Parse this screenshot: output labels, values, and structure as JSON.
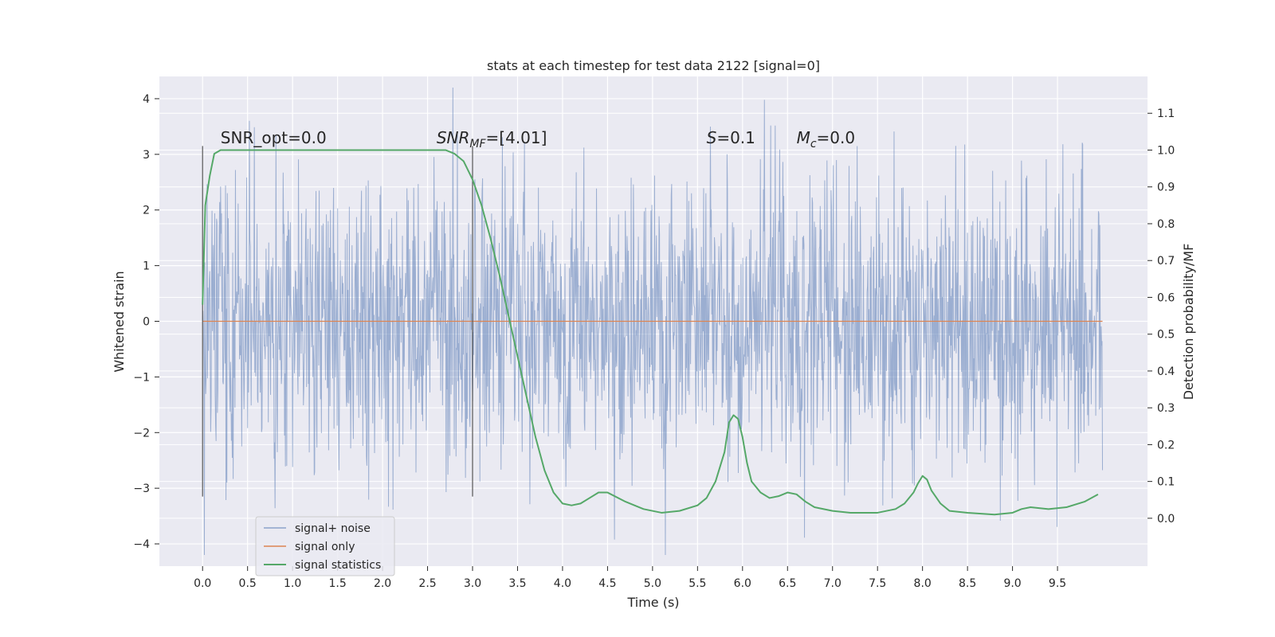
{
  "chart_data": {
    "type": "line",
    "title": "stats at each timestep for test data 2122 [signal=0]",
    "xlabel": "Time (s)",
    "ylabel": "Whitened strain",
    "y2label": "Detection probability/MF",
    "xlim": [
      -0.48,
      10.5
    ],
    "ylim": [
      -4.4,
      4.4
    ],
    "y2lim": [
      -0.13,
      1.2
    ],
    "x_ticks": [
      0.0,
      0.5,
      1.0,
      1.5,
      2.0,
      2.5,
      3.0,
      3.5,
      4.0,
      4.5,
      5.0,
      5.5,
      6.0,
      6.5,
      7.0,
      7.5,
      8.0,
      8.5,
      9.0,
      9.5
    ],
    "x_tick_labels": [
      "0.0",
      "0.5",
      "1.0",
      "1.5",
      "2.0",
      "2.5",
      "3.0",
      "3.5",
      "4.0",
      "4.5",
      "5.0",
      "5.5",
      "6.0",
      "6.5",
      "7.0",
      "7.5",
      "8.0",
      "8.5",
      "9.0",
      "9.5"
    ],
    "y_ticks": [
      4,
      3,
      2,
      1,
      0,
      -1,
      -2,
      -3,
      -4
    ],
    "y_tick_labels": [
      "4",
      "3",
      "2",
      "1",
      "0",
      "−1",
      "−2",
      "−3",
      "−4"
    ],
    "y2_ticks": [
      1.1,
      1.0,
      0.9,
      0.8,
      0.7,
      0.6,
      0.5,
      0.4,
      0.3,
      0.2,
      0.1,
      0.0
    ],
    "y2_tick_labels": [
      "1.1",
      "1.0",
      "0.9",
      "0.8",
      "0.7",
      "0.6",
      "0.5",
      "0.4",
      "0.3",
      "0.2",
      "0.1",
      "0.0"
    ],
    "grid": true,
    "legend_position": "lower-left",
    "series": [
      {
        "name": "signal+ noise",
        "color": "#4c72b0",
        "axis": "left",
        "kind": "noise",
        "x_range": [
          0.0,
          10.0
        ],
        "amplitude_std": 1.25
      },
      {
        "name": "signal only",
        "color": "#dd8452",
        "axis": "left",
        "x": [
          0.0,
          10.0
        ],
        "y": [
          0.0,
          0.0
        ]
      },
      {
        "name": "signal statistics",
        "color": "#55a868",
        "axis": "right",
        "x": [
          0.0,
          0.03,
          0.08,
          0.13,
          0.2,
          0.3,
          0.5,
          1.0,
          1.5,
          2.0,
          2.5,
          2.7,
          2.8,
          2.9,
          3.0,
          3.1,
          3.2,
          3.3,
          3.4,
          3.5,
          3.6,
          3.7,
          3.8,
          3.9,
          4.0,
          4.1,
          4.2,
          4.3,
          4.4,
          4.5,
          4.7,
          4.9,
          5.1,
          5.3,
          5.5,
          5.6,
          5.7,
          5.8,
          5.85,
          5.9,
          5.95,
          6.0,
          6.05,
          6.1,
          6.2,
          6.3,
          6.4,
          6.5,
          6.6,
          6.7,
          6.8,
          7.0,
          7.2,
          7.5,
          7.7,
          7.8,
          7.9,
          7.95,
          8.0,
          8.05,
          8.1,
          8.2,
          8.3,
          8.5,
          8.8,
          9.0,
          9.1,
          9.2,
          9.4,
          9.6,
          9.8,
          9.95
        ],
        "y": [
          0.58,
          0.85,
          0.93,
          0.99,
          1.0,
          1.0,
          1.0,
          1.0,
          1.0,
          1.0,
          1.0,
          1.0,
          0.99,
          0.97,
          0.92,
          0.85,
          0.76,
          0.66,
          0.55,
          0.44,
          0.33,
          0.22,
          0.13,
          0.07,
          0.04,
          0.035,
          0.04,
          0.055,
          0.07,
          0.07,
          0.045,
          0.025,
          0.015,
          0.02,
          0.035,
          0.055,
          0.1,
          0.18,
          0.26,
          0.28,
          0.27,
          0.22,
          0.15,
          0.1,
          0.07,
          0.055,
          0.06,
          0.07,
          0.065,
          0.045,
          0.03,
          0.02,
          0.015,
          0.015,
          0.025,
          0.04,
          0.07,
          0.095,
          0.115,
          0.105,
          0.075,
          0.04,
          0.02,
          0.015,
          0.01,
          0.015,
          0.025,
          0.03,
          0.025,
          0.03,
          0.045,
          0.065
        ]
      }
    ],
    "vlines": [
      0.0,
      3.0
    ],
    "annotations": [
      {
        "x": 0.2,
        "y": 3.2,
        "prefix": "SNR_opt=0.0",
        "sub": "",
        "suffix": "",
        "italic": false
      },
      {
        "x": 2.6,
        "y": 3.2,
        "prefix": "SNR",
        "sub": "MF",
        "suffix": "=[4.01]",
        "italic": true
      },
      {
        "x": 5.6,
        "y": 3.2,
        "prefix": "S",
        "sub": "",
        "suffix": "=0.1",
        "italic": true
      },
      {
        "x": 6.6,
        "y": 3.2,
        "prefix": "M",
        "sub": "c",
        "suffix": "=0.0",
        "italic": true
      }
    ]
  }
}
